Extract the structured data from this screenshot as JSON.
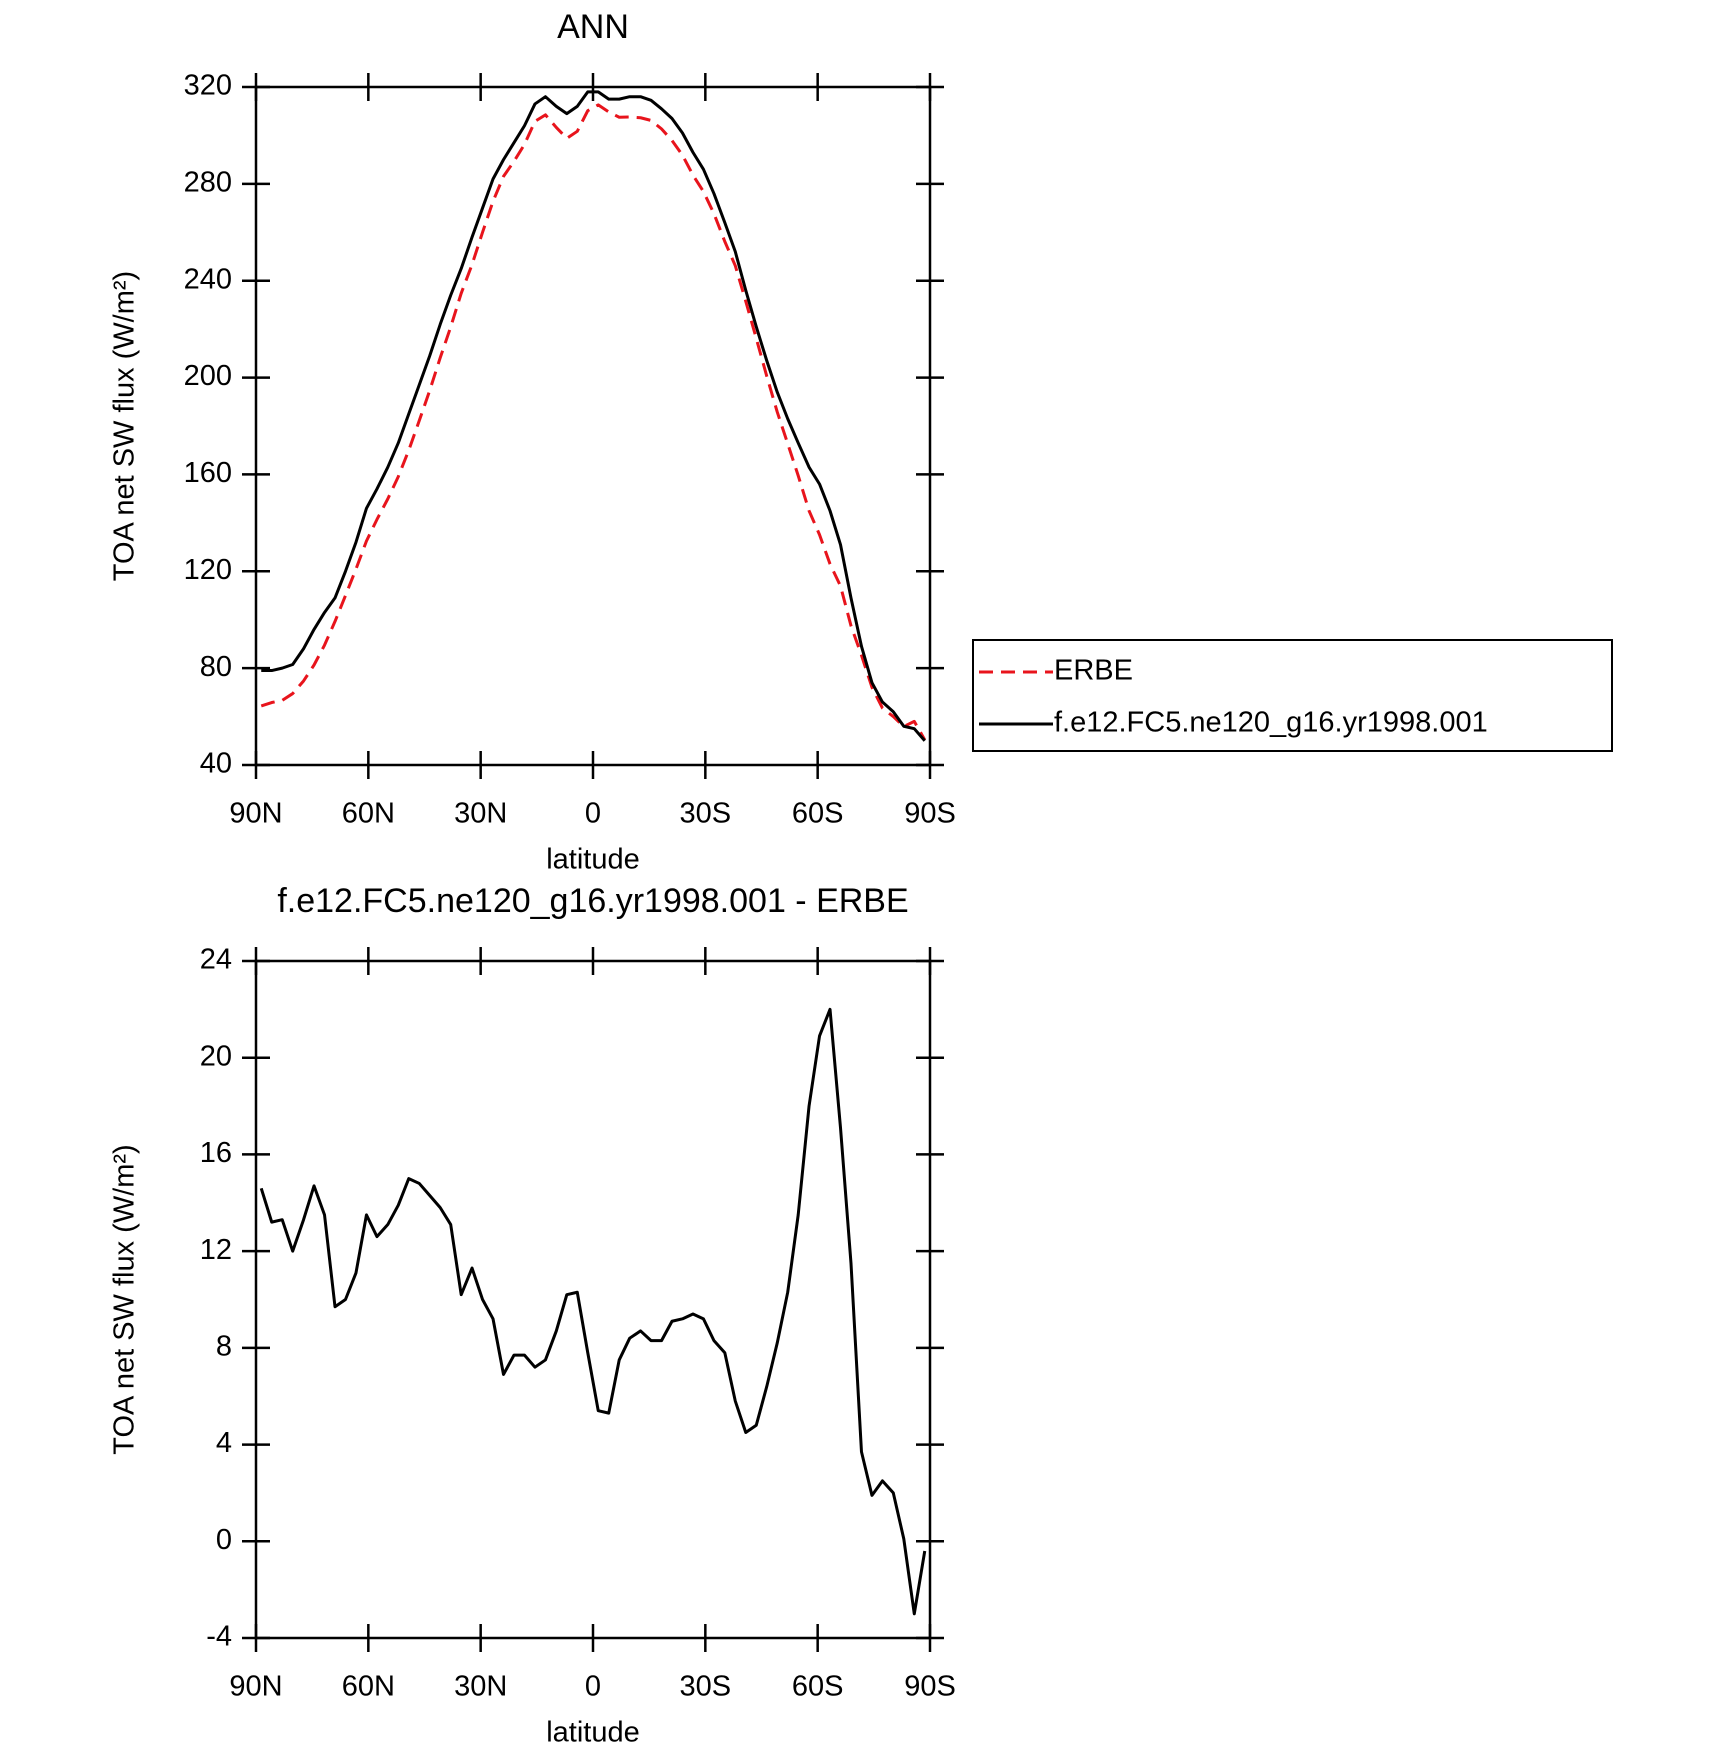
{
  "chart_data": [
    {
      "type": "line",
      "title": "ANN",
      "xlabel": "latitude",
      "ylabel": "TOA net SW flux (W/m²)",
      "x": [
        88.6,
        85.8,
        83.0,
        80.2,
        77.3,
        74.5,
        71.7,
        68.9,
        66.1,
        63.3,
        60.5,
        57.7,
        54.8,
        52.0,
        49.2,
        46.4,
        43.6,
        40.8,
        38.0,
        35.2,
        32.3,
        29.5,
        26.7,
        23.9,
        21.1,
        18.3,
        15.5,
        12.7,
        9.8,
        7.0,
        4.2,
        1.4,
        -1.4,
        -4.2,
        -7.0,
        -9.8,
        -12.7,
        -15.5,
        -18.3,
        -21.1,
        -23.9,
        -26.7,
        -29.5,
        -32.3,
        -35.2,
        -38.0,
        -40.8,
        -43.6,
        -46.4,
        -49.2,
        -52.0,
        -54.8,
        -57.7,
        -60.5,
        -63.3,
        -66.1,
        -68.9,
        -71.7,
        -74.5,
        -77.3,
        -80.2,
        -83.0,
        -85.8,
        -88.6
      ],
      "xlim": [
        90,
        -90
      ],
      "xticks": [
        {
          "value": 90,
          "label": "90N"
        },
        {
          "value": 60,
          "label": "60N"
        },
        {
          "value": 30,
          "label": "30N"
        },
        0,
        {
          "value": -30,
          "label": "30S"
        },
        {
          "value": -60,
          "label": "60S"
        },
        {
          "value": -90,
          "label": "90S"
        }
      ],
      "ylim": [
        40,
        320
      ],
      "yticks": [
        40,
        80,
        120,
        160,
        200,
        240,
        280,
        320
      ],
      "legend": "right",
      "series": [
        {
          "name": "ERBE",
          "color": "#e8141c",
          "dashed": true,
          "values": [
            64.4,
            65.8,
            66.7,
            69.5,
            74.7,
            81.3,
            89.5,
            99.3,
            110.0,
            120.9,
            132.5,
            141.4,
            149.9,
            159.1,
            170.0,
            182.2,
            194.7,
            208.2,
            220.9,
            234.8,
            246.7,
            260.0,
            272.8,
            283.1,
            289.3,
            296.3,
            305.8,
            308.5,
            303.3,
            298.8,
            301.7,
            310.2,
            312.6,
            309.7,
            307.5,
            307.6,
            307.3,
            306.2,
            302.7,
            297.9,
            291.8,
            283.6,
            276.8,
            267.7,
            256.2,
            246.2,
            231.5,
            216.2,
            200.6,
            185.8,
            172.7,
            159.5,
            145.0,
            135.1,
            123.0,
            113.9,
            97.5,
            85.3,
            72.1,
            63.5,
            60.0,
            55.9,
            58.0,
            50.4
          ]
        },
        {
          "name": "f.e12.FC5.ne120_g16.yr1998.001",
          "color": "#000000",
          "dashed": false,
          "values": [
            79.0,
            79.0,
            80.0,
            81.5,
            88.0,
            96.0,
            103.0,
            109.0,
            120.0,
            132.0,
            146.0,
            154.0,
            163.0,
            173.0,
            185.0,
            197.0,
            209.0,
            222.0,
            234.0,
            245.0,
            258.0,
            270.0,
            282.0,
            290.0,
            297.0,
            304.0,
            313.0,
            316.0,
            312.0,
            309.0,
            312.0,
            318.0,
            318.0,
            315.0,
            315.0,
            316.0,
            316.0,
            314.5,
            311.0,
            307.0,
            301.0,
            293.0,
            286.0,
            276.0,
            264.0,
            252.0,
            236.0,
            221.0,
            207.0,
            194.0,
            183.0,
            173.0,
            163.0,
            156.0,
            145.0,
            131.0,
            109.0,
            89.0,
            74.0,
            66.0,
            62.0,
            56.0,
            55.0,
            50.0
          ]
        }
      ]
    },
    {
      "type": "line",
      "title": "f.e12.FC5.ne120_g16.yr1998.001 - ERBE",
      "xlabel": "latitude",
      "ylabel": "TOA net SW flux (W/m²)",
      "x": [
        88.6,
        85.8,
        83.0,
        80.2,
        77.3,
        74.5,
        71.7,
        68.9,
        66.1,
        63.3,
        60.5,
        57.7,
        54.8,
        52.0,
        49.2,
        46.4,
        43.6,
        40.8,
        38.0,
        35.2,
        32.3,
        29.5,
        26.7,
        23.9,
        21.1,
        18.3,
        15.5,
        12.7,
        9.8,
        7.0,
        4.2,
        1.4,
        -1.4,
        -4.2,
        -7.0,
        -9.8,
        -12.7,
        -15.5,
        -18.3,
        -21.1,
        -23.9,
        -26.7,
        -29.5,
        -32.3,
        -35.2,
        -38.0,
        -40.8,
        -43.6,
        -46.4,
        -49.2,
        -52.0,
        -54.8,
        -57.7,
        -60.5,
        -63.3,
        -66.1,
        -68.9,
        -71.7,
        -74.5,
        -77.3,
        -80.2,
        -83.0,
        -85.8,
        -88.6
      ],
      "xlim": [
        90,
        -90
      ],
      "xticks": [
        {
          "value": 90,
          "label": "90N"
        },
        {
          "value": 60,
          "label": "60N"
        },
        {
          "value": 30,
          "label": "30N"
        },
        0,
        {
          "value": -30,
          "label": "30S"
        },
        {
          "value": -60,
          "label": "60S"
        },
        {
          "value": -90,
          "label": "90S"
        }
      ],
      "ylim": [
        -4,
        24
      ],
      "yticks": [
        -4,
        0,
        4,
        8,
        12,
        16,
        20,
        24
      ],
      "color": "#000000",
      "values": [
        14.6,
        13.2,
        13.3,
        12.0,
        13.3,
        14.7,
        13.5,
        9.7,
        10.0,
        11.1,
        13.5,
        12.6,
        13.1,
        13.9,
        15.0,
        14.8,
        14.3,
        13.8,
        13.1,
        10.2,
        11.3,
        10.0,
        9.2,
        6.9,
        7.7,
        7.7,
        7.2,
        7.5,
        8.7,
        10.2,
        10.3,
        7.8,
        5.4,
        5.3,
        7.5,
        8.4,
        8.7,
        8.3,
        8.3,
        9.1,
        9.2,
        9.4,
        9.2,
        8.3,
        7.8,
        5.8,
        4.5,
        4.8,
        6.4,
        8.2,
        10.3,
        13.5,
        18.0,
        20.9,
        22.0,
        17.1,
        11.5,
        3.7,
        1.9,
        2.5,
        2.0,
        0.1,
        -3.0,
        -0.4
      ]
    }
  ]
}
